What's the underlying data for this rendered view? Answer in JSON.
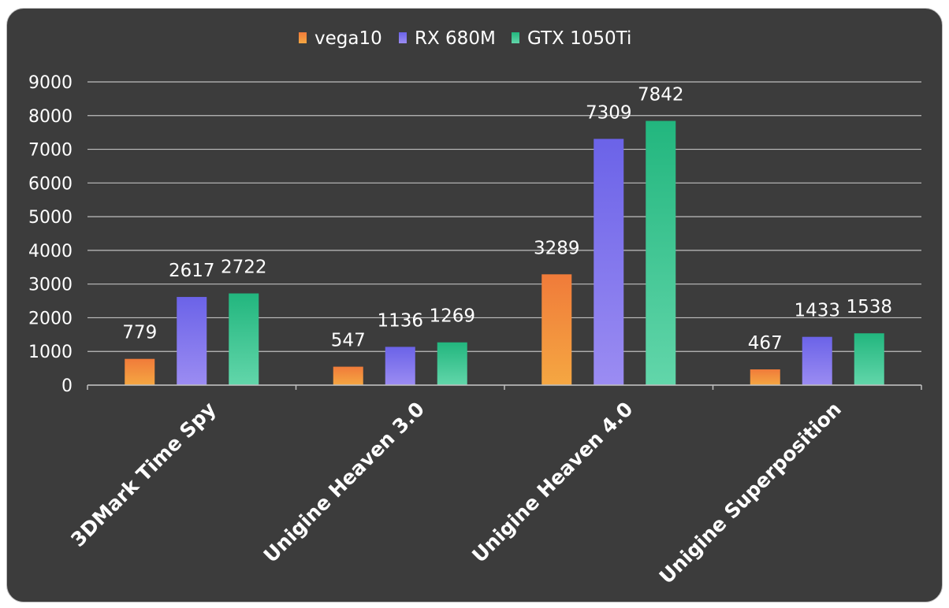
{
  "chart_data": {
    "type": "bar",
    "categories": [
      "3DMark Time Spy",
      "Unigine Heaven 3.0",
      "Unigine Heaven 4.0",
      "Unigine Superposition"
    ],
    "series": [
      {
        "name": "vega10",
        "values": [
          779,
          547,
          3289,
          467
        ],
        "color": "#f5a742",
        "color_top": "#f07b3a"
      },
      {
        "name": "RX 680M",
        "values": [
          2617,
          1136,
          7309,
          1433
        ],
        "color": "#9b8cf2",
        "color_top": "#6b63e8"
      },
      {
        "name": "GTX 1050Ti",
        "values": [
          2722,
          1269,
          7842,
          1538
        ],
        "color": "#62d6aa",
        "color_top": "#22b67e"
      }
    ],
    "y_ticks": [
      "0",
      "1000",
      "2000",
      "3000",
      "4000",
      "5000",
      "6000",
      "7000",
      "8000",
      "9000"
    ],
    "ylim": [
      0,
      9000
    ],
    "grid": true,
    "legend_position": "top-center",
    "colors": {
      "background": "#3c3c3c",
      "grid": "#bfbfbf",
      "text": "#ffffff"
    }
  }
}
